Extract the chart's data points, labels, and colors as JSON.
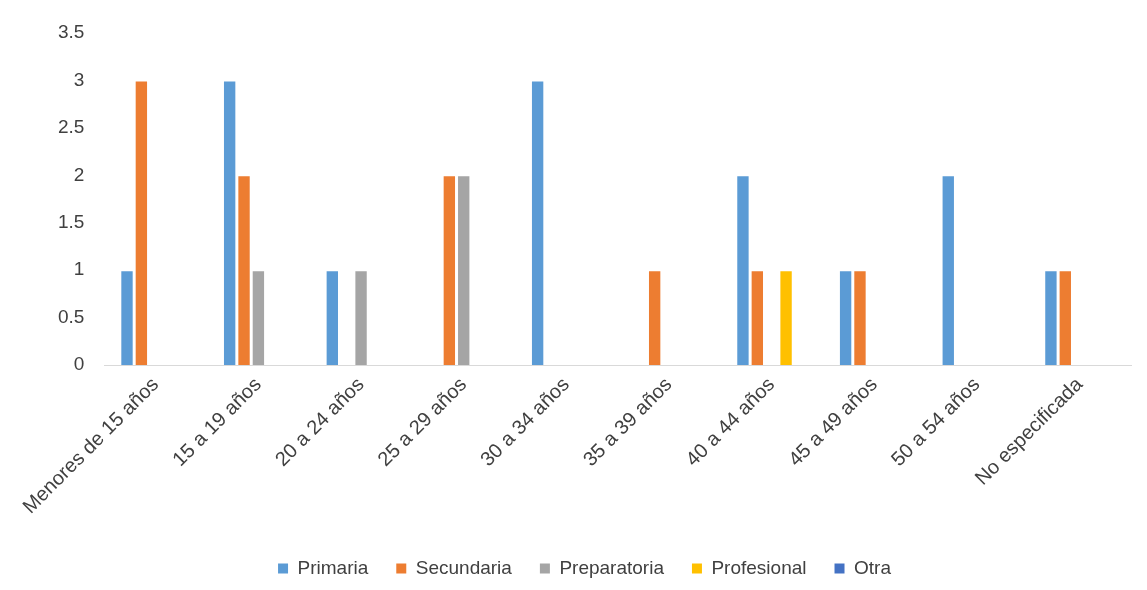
{
  "chart_data": {
    "type": "bar",
    "categories": [
      "Menores de 15 años",
      "15 a 19 años",
      "20 a 24 años",
      "25 a 29 años",
      "30 a 34 años",
      "35 a 39 años",
      "40 a 44 años",
      "45 a 49 años",
      "50 a 54 años",
      "No especificada"
    ],
    "series": [
      {
        "name": "Primaria",
        "color": "#5b9bd5",
        "values": [
          1,
          3,
          1,
          0,
          3,
          0,
          2,
          1,
          2,
          1
        ]
      },
      {
        "name": "Secundaria",
        "color": "#ed7d31",
        "values": [
          3,
          2,
          0,
          2,
          0,
          1,
          1,
          1,
          0,
          1
        ]
      },
      {
        "name": "Preparatoria",
        "color": "#a5a5a5",
        "values": [
          0,
          1,
          1,
          2,
          0,
          0,
          0,
          0,
          0,
          0
        ]
      },
      {
        "name": "Profesional",
        "color": "#ffc000",
        "values": [
          0,
          0,
          0,
          0,
          0,
          0,
          1,
          0,
          0,
          0
        ]
      },
      {
        "name": "Otra",
        "color": "#4472c4",
        "values": [
          0,
          0,
          0,
          0,
          0,
          0,
          0,
          0,
          0,
          0
        ]
      }
    ],
    "ylim": [
      0,
      3.5
    ],
    "yticks": [
      0,
      0.5,
      1,
      1.5,
      2,
      2.5,
      3,
      3.5
    ],
    "grid": false,
    "legend": "bottom"
  }
}
